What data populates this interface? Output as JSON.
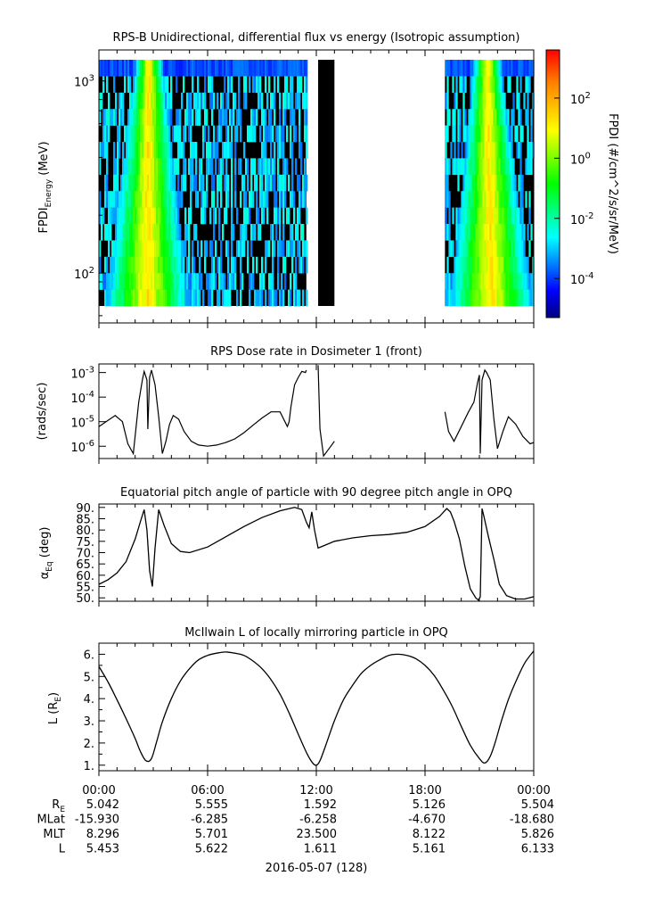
{
  "panels": [
    {
      "id": "spectrogram",
      "title": "RPS-B  Unidirectional, differential flux vs energy (Isotropic assumption)",
      "ylabel_main": "FPDI",
      "ylabel_sub": "Energy",
      "ylabel_unit": " (MeV)",
      "yticks": [
        {
          "base": "10",
          "exp": "3",
          "value": 1000
        },
        {
          "base": "10",
          "exp": "2",
          "value": 100
        }
      ],
      "ylim": [
        55,
        1450
      ],
      "yscale": "log",
      "colorbar": {
        "label": "FPDI (#/cm^2/s/sr/MeV)",
        "ticks": [
          {
            "base": "10",
            "exp": "2",
            "value": 2
          },
          {
            "base": "10",
            "exp": "0",
            "value": 0
          },
          {
            "base": "10",
            "exp": "-2",
            "value": -2
          },
          {
            "base": "10",
            "exp": "-4",
            "value": -4
          }
        ],
        "range_log10": [
          -5.3,
          3.6
        ]
      }
    },
    {
      "id": "dose",
      "title": "RPS  Dose rate in Dosimeter 1 (front)",
      "ylabel": "(rads/sec)",
      "yticks": [
        {
          "base": "10",
          "exp": "-3",
          "value": -3
        },
        {
          "base": "10",
          "exp": "-4",
          "value": -4
        },
        {
          "base": "10",
          "exp": "-5",
          "value": -5
        },
        {
          "base": "10",
          "exp": "-6",
          "value": -6
        }
      ],
      "yscale": "log",
      "ylim_log10": [
        -6.5,
        -2.65
      ]
    },
    {
      "id": "pitch",
      "title": "Equatorial pitch angle of particle with 90 degree pitch angle in OPQ",
      "ylabel_main": "α",
      "ylabel_sub": "Eq",
      "ylabel_unit": " (deg)",
      "yticks": [
        "90.",
        "85.",
        "80.",
        "75.",
        "70.",
        "65.",
        "60.",
        "55.",
        "50."
      ],
      "ylim": [
        48.5,
        91.5
      ]
    },
    {
      "id": "lshell",
      "title": "McIlwain L of locally mirroring particle in OPQ",
      "ylabel_main": "L (R",
      "ylabel_sub": "E",
      "ylabel_unit": ")",
      "yticks": [
        "6.",
        "5.",
        "4.",
        "3.",
        "2.",
        "1."
      ],
      "ylim": [
        0.75,
        6.5
      ]
    }
  ],
  "xaxis": {
    "ticks": [
      "00:00",
      "06:00",
      "12:00",
      "18:00",
      "00:00"
    ],
    "date_label": "2016-05-07 (128)"
  },
  "ephemeris": {
    "rows": [
      {
        "main": "R",
        "sub": "E",
        "values": [
          "5.042",
          "5.555",
          "1.592",
          "5.126",
          "5.504"
        ]
      },
      {
        "main": "MLat",
        "sub": "",
        "values": [
          "-15.930",
          "-6.285",
          "-6.258",
          "-4.670",
          "-18.680"
        ]
      },
      {
        "main": "MLT",
        "sub": "",
        "values": [
          "8.296",
          "5.701",
          "23.500",
          "8.122",
          "5.826"
        ]
      },
      {
        "main": "L",
        "sub": "",
        "values": [
          "5.453",
          "5.622",
          "1.611",
          "5.161",
          "6.133"
        ]
      }
    ]
  },
  "chart_data": [
    {
      "type": "heatmap",
      "panel": "spectrogram",
      "x_unit": "hours",
      "y_unit": "MeV",
      "data_segments_hours": [
        [
          0.0,
          11.45
        ],
        [
          12.1,
          13.0
        ],
        [
          19.1,
          24.0
        ]
      ],
      "filled_no_signal_segment_hours": [
        [
          12.1,
          13.0
        ]
      ],
      "peak_flux_tracks_hours": [
        [
          2.6,
          2.7
        ],
        [
          21.6,
          21.4
        ]
      ]
    },
    {
      "type": "line",
      "panel": "dose",
      "y_unit": "rads/sec (log10)",
      "x": [
        0.0,
        0.5,
        0.9,
        1.3,
        1.6,
        1.9,
        2.2,
        2.4,
        2.5,
        2.65,
        2.7,
        2.8,
        2.9,
        3.1,
        3.3,
        3.5,
        3.7,
        3.9,
        4.1,
        4.4,
        4.7,
        5.1,
        5.5,
        6.0,
        6.5,
        7.0,
        7.5,
        8.0,
        8.5,
        9.0,
        9.5,
        10.0,
        10.4,
        10.5,
        10.6,
        10.8,
        11.0,
        11.2,
        11.4,
        11.45
      ],
      "y": [
        -5.2,
        -4.95,
        -4.75,
        -5.0,
        -5.9,
        -6.3,
        -4.2,
        -3.3,
        -2.95,
        -3.3,
        -5.3,
        -3.2,
        -2.9,
        -3.5,
        -4.8,
        -6.3,
        -5.8,
        -5.1,
        -4.75,
        -4.9,
        -5.4,
        -5.8,
        -5.95,
        -6.0,
        -5.95,
        -5.85,
        -5.7,
        -5.45,
        -5.15,
        -4.85,
        -4.6,
        -4.6,
        -5.2,
        -5.0,
        -4.4,
        -3.5,
        -3.2,
        -2.95,
        -3.0,
        -2.9
      ]
    },
    {
      "type": "line",
      "panel": "dose_segment2",
      "y_unit": "rads/sec (log10)",
      "x": [
        12.1,
        12.2,
        12.4,
        12.6,
        12.8,
        13.0
      ],
      "y": [
        -2.7,
        -5.3,
        -6.4,
        -6.2,
        -6.0,
        -5.8
      ]
    },
    {
      "type": "line",
      "panel": "dose_segment3",
      "y_unit": "rads/sec (log10)",
      "x": [
        19.1,
        19.3,
        19.6,
        20.0,
        20.4,
        20.7,
        20.9,
        21.0,
        21.05,
        21.15,
        21.3,
        21.4,
        21.6,
        21.8,
        22.0,
        22.3,
        22.6,
        23.0,
        23.4,
        23.8,
        24.0
      ],
      "y": [
        -4.6,
        -5.4,
        -5.8,
        -5.2,
        -4.6,
        -4.2,
        -3.4,
        -3.1,
        -6.3,
        -3.3,
        -2.9,
        -3.0,
        -3.3,
        -4.9,
        -6.1,
        -5.4,
        -4.8,
        -5.1,
        -5.6,
        -5.9,
        -5.85
      ]
    },
    {
      "type": "line",
      "panel": "pitch",
      "y_unit": "deg",
      "x": [
        0.0,
        0.5,
        1.0,
        1.5,
        2.0,
        2.3,
        2.5,
        2.65,
        2.8,
        2.95,
        3.1,
        3.3,
        3.6,
        4.0,
        4.5,
        5.0,
        6.0,
        7.0,
        8.0,
        9.0,
        10.0,
        10.8,
        11.2,
        11.45,
        11.6,
        11.75,
        11.9,
        12.1,
        12.4,
        13.0,
        14.0,
        15.0,
        16.0,
        17.0,
        18.0,
        18.8,
        19.2,
        19.4,
        19.6,
        19.9,
        20.2,
        20.5,
        20.8,
        20.95,
        21.05,
        21.15,
        21.25,
        21.5,
        21.8,
        22.1,
        22.5,
        23.0,
        23.5,
        24.0
      ],
      "y": [
        56.0,
        58.0,
        61.0,
        66.0,
        76.0,
        84.0,
        89.0,
        80.0,
        62.0,
        55.0,
        72.0,
        89.0,
        82.0,
        74.0,
        70.5,
        70.0,
        72.5,
        77.0,
        81.5,
        85.5,
        88.5,
        90.0,
        89.0,
        83.5,
        81.0,
        88.0,
        80.0,
        72.0,
        73.0,
        75.0,
        76.5,
        77.5,
        78.0,
        79.0,
        81.5,
        86.0,
        89.5,
        88.0,
        84.0,
        76.0,
        64.0,
        54.0,
        50.0,
        49.0,
        50.5,
        89.5,
        86.0,
        77.0,
        67.0,
        56.0,
        51.0,
        49.5,
        49.5,
        50.5
      ]
    },
    {
      "type": "line",
      "panel": "lshell",
      "y_unit": "Earth radii",
      "x": [
        0.0,
        0.5,
        1.0,
        1.5,
        2.0,
        2.3,
        2.6,
        2.9,
        3.2,
        3.5,
        4.0,
        4.5,
        5.0,
        5.5,
        6.0,
        6.5,
        7.0,
        7.5,
        8.0,
        8.5,
        9.0,
        9.5,
        10.0,
        10.5,
        11.0,
        11.5,
        11.8,
        12.0,
        12.2,
        12.5,
        13.0,
        13.5,
        14.0,
        14.5,
        15.0,
        15.5,
        16.0,
        16.5,
        17.0,
        17.5,
        18.0,
        18.5,
        19.0,
        19.5,
        20.0,
        20.5,
        21.0,
        21.3,
        21.6,
        21.9,
        22.2,
        22.6,
        23.0,
        23.5,
        24.0
      ],
      "y": [
        5.45,
        4.75,
        3.95,
        3.1,
        2.2,
        1.6,
        1.2,
        1.3,
        2.1,
        2.95,
        4.0,
        4.8,
        5.35,
        5.75,
        5.95,
        6.05,
        6.1,
        6.05,
        5.95,
        5.7,
        5.35,
        4.85,
        4.2,
        3.35,
        2.4,
        1.5,
        1.1,
        1.0,
        1.2,
        1.85,
        3.0,
        3.95,
        4.6,
        5.15,
        5.5,
        5.75,
        5.95,
        6.0,
        5.95,
        5.8,
        5.5,
        5.05,
        4.4,
        3.65,
        2.75,
        1.9,
        1.3,
        1.1,
        1.4,
        2.1,
        2.95,
        3.95,
        4.75,
        5.6,
        6.15
      ]
    }
  ]
}
